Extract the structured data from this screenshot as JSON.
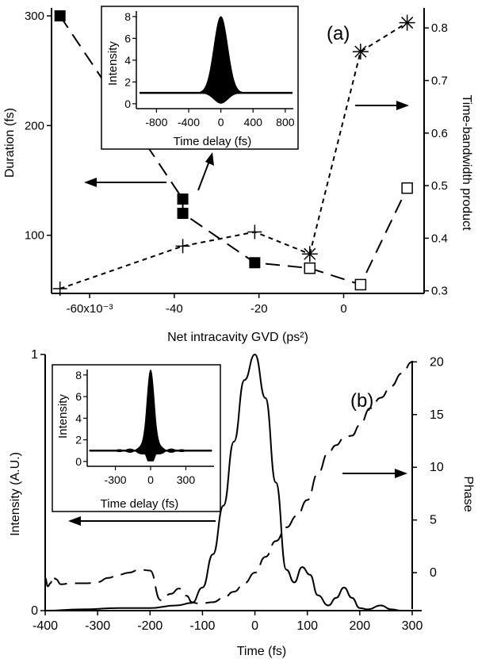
{
  "chart_data": [
    {
      "panel": "(a)",
      "type": "line",
      "xlabel": "Net intracavity GVD (ps²)",
      "ylabel": "Duration (fs)",
      "y2label": "Time-bandwidth product",
      "x_ticks": [
        "-60x10⁻³",
        "-40",
        "-20",
        "0"
      ],
      "x_tick_values": [
        -60,
        -40,
        -20,
        0
      ],
      "y_ticks": [
        "100",
        "200",
        "300"
      ],
      "y_tick_values": [
        100,
        200,
        300
      ],
      "y2_ticks": [
        "0.3",
        "0.4",
        "0.5",
        "0.6",
        "0.7",
        "0.8"
      ],
      "y2_tick_values": [
        0.3,
        0.4,
        0.5,
        0.6,
        0.7,
        0.8
      ],
      "xlim": [
        -69,
        19
      ],
      "ylim": [
        47,
        300
      ],
      "y2lim": [
        0.295,
        0.823
      ],
      "series": [
        {
          "marker": "filled-square",
          "axis": "left",
          "style": "long-dash",
          "x": [
            -67,
            -38,
            -38,
            -21,
            -8
          ],
          "y": [
            300,
            133,
            120,
            75,
            70
          ]
        },
        {
          "marker": "open-square",
          "axis": "left",
          "style": "long-dash",
          "x": [
            -8,
            4,
            15
          ],
          "y": [
            70,
            55,
            143
          ]
        },
        {
          "marker": "plus",
          "axis": "right",
          "style": "short-dash",
          "x": [
            -67,
            -38,
            -21,
            -8
          ],
          "y": [
            0.304,
            0.385,
            0.412,
            0.37
          ]
        },
        {
          "marker": "asterisk",
          "axis": "right",
          "style": "short-dash",
          "x": [
            -8,
            4,
            15
          ],
          "y": [
            0.37,
            0.755,
            0.81
          ]
        }
      ],
      "annotations": [
        "(a)"
      ],
      "inset": {
        "type": "area",
        "xlabel": "Time delay (fs)",
        "ylabel": "Intensity",
        "x_ticks": [
          "-800",
          "-400",
          "0",
          "400",
          "800"
        ],
        "x_tick_values": [
          -800,
          -400,
          0,
          400,
          800
        ],
        "y_ticks": [
          "0",
          "2",
          "4",
          "6",
          "8"
        ],
        "y_tick_values": [
          0,
          2,
          4,
          6,
          8
        ],
        "xlim": [
          -1050,
          900
        ],
        "ylim": [
          -0.3,
          8.5
        ],
        "baseline": 1,
        "peak": 8,
        "peak_x": 0
      }
    },
    {
      "panel": "(b)",
      "type": "line",
      "xlabel": "Time (fs)",
      "ylabel": "Intensity (A.U.)",
      "y2label": "Phase",
      "x_ticks": [
        "-400",
        "-300",
        "-200",
        "-100",
        "0",
        "100",
        "200",
        "300"
      ],
      "x_tick_values": [
        -400,
        -300,
        -200,
        -100,
        0,
        100,
        200,
        300
      ],
      "y_ticks": [
        "0",
        "1"
      ],
      "y_tick_values": [
        0,
        1
      ],
      "y2_ticks": [
        "0",
        "5",
        "10",
        "15",
        "20"
      ],
      "y2_tick_values": [
        0,
        5,
        10,
        15,
        20
      ],
      "xlim": [
        -400,
        300
      ],
      "ylim": [
        0,
        1
      ],
      "y2lim": [
        -3.6,
        20.1
      ],
      "series": [
        {
          "name": "",
          "axis": "left",
          "style": "solid",
          "x": [
            -400,
            -330,
            -260,
            -200,
            -150,
            -120,
            -100,
            -80,
            -60,
            -40,
            -20,
            0,
            20,
            40,
            60,
            75,
            90,
            105,
            120,
            140,
            155,
            170,
            185,
            200,
            215,
            240,
            260,
            280,
            300
          ],
          "y": [
            0.0,
            0.005,
            0.01,
            0.01,
            0.02,
            0.03,
            0.09,
            0.22,
            0.41,
            0.66,
            0.9,
            1.0,
            0.83,
            0.5,
            0.16,
            0.11,
            0.17,
            0.14,
            0.06,
            0.02,
            0.05,
            0.09,
            0.05,
            0.01,
            0.005,
            0.02,
            0.005,
            0.0,
            0.0
          ]
        },
        {
          "name": "",
          "axis": "right",
          "style": "long-dash",
          "x": [
            -400,
            -395,
            -390,
            -385,
            -380,
            -370,
            -350,
            -320,
            -300,
            -280,
            -260,
            -240,
            -220,
            -200,
            -180,
            -160,
            -145,
            -130,
            -120,
            -110,
            -100,
            -80,
            -60,
            -40,
            -20,
            0,
            20,
            40,
            60,
            80,
            100,
            120,
            140,
            155,
            170,
            185,
            200,
            220,
            240,
            260,
            280,
            300
          ],
          "y": [
            -0.5,
            -1.3,
            -1.0,
            -0.3,
            -0.6,
            -1.1,
            -1.0,
            -1.0,
            -0.9,
            -0.5,
            -0.2,
            0.0,
            0.3,
            0.2,
            -2.6,
            -2.0,
            -1.5,
            -2.2,
            -2.8,
            -2.9,
            -2.9,
            -2.8,
            -2.4,
            -1.8,
            -1.0,
            0.0,
            1.5,
            3.0,
            4.3,
            5.4,
            6.9,
            9.4,
            11.4,
            12.1,
            12.8,
            13.0,
            14.0,
            15.6,
            16.6,
            17.7,
            18.9,
            20.0
          ]
        }
      ],
      "annotations": [
        "(b)"
      ],
      "inset": {
        "type": "area",
        "xlabel": "Time delay (fs)",
        "ylabel": "Intensity",
        "x_ticks": [
          "-300",
          "0",
          "300"
        ],
        "x_tick_values": [
          -300,
          0,
          300
        ],
        "y_ticks": [
          "0",
          "2",
          "4",
          "6",
          "8"
        ],
        "y_tick_values": [
          0,
          2,
          4,
          6,
          8
        ],
        "xlim": [
          -540,
          540
        ],
        "ylim": [
          -0.3,
          8.5
        ],
        "baseline": 1,
        "peak": 8,
        "peak_x": 0
      }
    }
  ]
}
